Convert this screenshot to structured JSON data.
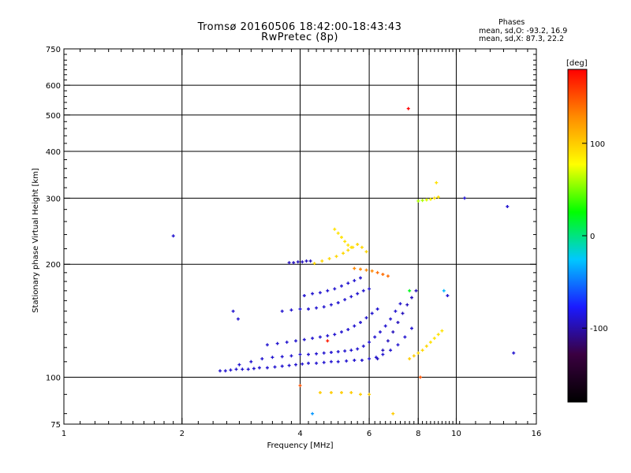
{
  "titles": {
    "line1": "Tromsø 20160506 18:42:00-18:43:43",
    "line2": "RwPretec (8p)"
  },
  "stats": {
    "heading": "Phases",
    "o_line": "mean, sd,O: -93.2, 16.9",
    "x_line": "mean, sd,X: 87.3, 22.2"
  },
  "colors": {
    "axis": "#000000",
    "grid": "#000000",
    "background": "#ffffff"
  },
  "chart_data": {
    "type": "scatter",
    "xlabel": "Frequency [MHz]",
    "ylabel": "Stationary phase Virtual Height [km]",
    "x_scale": "log",
    "y_scale": "log",
    "xlim": [
      1,
      16
    ],
    "ylim": [
      75,
      750
    ],
    "x_major_ticks": [
      1,
      2,
      4,
      6,
      8,
      10,
      16
    ],
    "y_major_ticks": [
      75,
      100,
      200,
      300,
      400,
      500,
      600,
      750
    ],
    "x_grid": [
      2,
      4,
      6,
      8,
      10
    ],
    "y_grid": [
      100,
      200,
      300,
      400,
      500,
      600
    ],
    "colorbar": {
      "label": "[deg]",
      "range": [
        -180,
        180
      ],
      "tick_values": [
        100,
        0,
        -100
      ],
      "tick_labels": [
        "100",
        "0",
        "-100"
      ],
      "stops": [
        "#000000",
        "#3a0040",
        "#1a1aff",
        "#00c8ff",
        "#00ff00",
        "#ffff00",
        "#ff8c00",
        "#ff0000"
      ]
    },
    "series": [
      {
        "trace": "O",
        "x": [
          2.5,
          2.58,
          2.66,
          2.75,
          2.85,
          2.95,
          3.05,
          3.15,
          3.3,
          3.45,
          3.6,
          3.75,
          3.9,
          4.05,
          4.2,
          4.4,
          4.6,
          4.8,
          5.0,
          5.25,
          5.5,
          5.75,
          6.0,
          6.25,
          6.5,
          6.8,
          7.1,
          7.4,
          7.7
        ],
        "y": [
          104,
          104,
          104.5,
          105,
          105,
          105,
          105.5,
          106,
          106,
          106.5,
          107,
          107.5,
          108,
          108.5,
          109,
          109,
          109.5,
          110,
          110,
          110.5,
          111,
          111,
          112,
          113,
          115,
          118,
          122,
          128,
          135
        ],
        "phase": [
          -90,
          -90,
          -90,
          -90,
          -90,
          -90,
          -90,
          -90,
          -90,
          -90,
          -90,
          -90,
          -90,
          -90,
          -90,
          -90,
          -90,
          -90,
          -90,
          -90,
          -90,
          -90,
          -90,
          -90,
          -90,
          -90,
          -90,
          -90,
          -90
        ]
      },
      {
        "trace": "O",
        "x": [
          2.8,
          3.0,
          3.2,
          3.4,
          3.6,
          3.8,
          4.0,
          4.2,
          4.4,
          4.6,
          4.8,
          5.0,
          5.2,
          5.4,
          5.6,
          5.8,
          6.0,
          6.2,
          6.4,
          6.6,
          6.8,
          7.0,
          7.2
        ],
        "y": [
          108,
          110,
          112,
          113,
          113.5,
          114,
          115,
          115,
          115.5,
          116,
          116.5,
          117,
          117.5,
          118,
          119,
          121,
          124,
          128,
          132,
          137,
          143,
          150,
          157
        ],
        "phase": [
          -90,
          -90,
          -90,
          -90,
          -90,
          -90,
          -90,
          -90,
          -90,
          -90,
          -90,
          -90,
          -90,
          -90,
          -90,
          -90,
          -90,
          -90,
          -90,
          -90,
          -90,
          -90,
          -90
        ]
      },
      {
        "trace": "O",
        "x": [
          3.3,
          3.5,
          3.7,
          3.9,
          4.1,
          4.3,
          4.5,
          4.7,
          4.9,
          5.1,
          5.3,
          5.5,
          5.7,
          5.9,
          6.1,
          6.3
        ],
        "y": [
          122,
          123,
          124,
          125,
          126,
          127,
          128,
          129,
          130,
          132,
          134,
          137,
          140,
          144,
          148,
          152
        ],
        "phase": [
          -90,
          -90,
          -90,
          -90,
          -90,
          -90,
          -90,
          -90,
          -90,
          -90,
          -90,
          -90,
          -90,
          -90,
          -90,
          -90
        ]
      },
      {
        "trace": "O",
        "x": [
          3.6,
          3.8,
          4.0,
          4.2,
          4.4,
          4.6,
          4.8,
          5.0,
          5.2,
          5.4,
          5.6,
          5.8,
          6.0
        ],
        "y": [
          150,
          151,
          152,
          152,
          153,
          154,
          156,
          158,
          161,
          164,
          167,
          170,
          172
        ],
        "phase": [
          -90,
          -90,
          -90,
          -90,
          -90,
          -90,
          -90,
          -90,
          -90,
          -90,
          -90,
          -90,
          -90
        ]
      },
      {
        "trace": "O",
        "x": [
          4.1,
          4.3,
          4.5,
          4.7,
          4.9,
          5.1,
          5.3,
          5.5,
          5.7
        ],
        "y": [
          165,
          167,
          168,
          170,
          172,
          175,
          178,
          181,
          184
        ],
        "phase": [
          -90,
          -90,
          -90,
          -90,
          -90,
          -90,
          -90,
          -90,
          -90
        ]
      },
      {
        "trace": "O",
        "x": [
          3.75,
          3.85,
          3.95,
          4.05,
          4.15,
          4.25
        ],
        "y": [
          202,
          202,
          203,
          203,
          204,
          204
        ],
        "phase": [
          -95,
          -95,
          -95,
          -95,
          -95,
          -95
        ]
      },
      {
        "trace": "O",
        "x": [
          6.3,
          6.5,
          6.7,
          6.9,
          7.1,
          7.3,
          7.5,
          7.7,
          7.9
        ],
        "y": [
          112,
          118,
          125,
          132,
          140,
          148,
          156,
          163,
          170
        ],
        "phase": [
          -95,
          -95,
          -95,
          -95,
          -95,
          -95,
          -95,
          -95,
          -95
        ]
      },
      {
        "trace": "X",
        "x": [
          4.35,
          4.55,
          4.75,
          4.95,
          5.15,
          5.3,
          5.45,
          5.6,
          5.75,
          5.9
        ],
        "y": [
          201,
          204,
          207,
          210,
          214,
          218,
          222,
          226,
          222,
          216
        ],
        "phase": [
          95,
          95,
          95,
          95,
          95,
          95,
          95,
          95,
          95,
          95
        ]
      },
      {
        "trace": "X",
        "x": [
          4.9,
          5.0,
          5.1,
          5.2,
          5.3,
          5.4
        ],
        "y": [
          248,
          242,
          236,
          230,
          225,
          222
        ],
        "phase": [
          90,
          90,
          90,
          90,
          90,
          90
        ]
      },
      {
        "trace": "X",
        "x": [
          5.5,
          5.7,
          5.9,
          6.1,
          6.3,
          6.5,
          6.7
        ],
        "y": [
          195,
          194,
          193,
          192,
          190,
          188,
          186
        ],
        "phase": [
          130,
          130,
          130,
          130,
          140,
          140,
          140
        ]
      },
      {
        "trace": "X",
        "x": [
          8.0,
          8.2,
          8.4,
          8.6,
          8.8,
          9.0
        ],
        "y": [
          295,
          296,
          297,
          298,
          300,
          302
        ],
        "phase": [
          60,
          60,
          70,
          80,
          90,
          90
        ]
      },
      {
        "trace": "X",
        "x": [
          7.6,
          7.8,
          8.0,
          8.2,
          8.4,
          8.6,
          8.8,
          9.0,
          9.2
        ],
        "y": [
          112,
          114,
          116,
          118,
          121,
          124,
          127,
          130,
          133
        ],
        "phase": [
          100,
          100,
          95,
          95,
          95,
          90,
          90,
          90,
          90
        ]
      },
      {
        "trace": "X",
        "x": [
          4.5,
          4.8,
          5.1,
          5.4,
          5.7,
          6.0
        ],
        "y": [
          91,
          91,
          91,
          91,
          90,
          90
        ],
        "phase": [
          100,
          100,
          100,
          100,
          100,
          100
        ]
      },
      {
        "trace": "scatter",
        "x": [
          1.9,
          2.7,
          2.78,
          7.55,
          10.5,
          13.5,
          14.0,
          9.5,
          8.9,
          4.3,
          4.0,
          8.1,
          6.9,
          7.6,
          9.3,
          4.7
        ],
        "y": [
          238,
          150,
          143,
          520,
          300,
          285,
          116,
          165,
          330,
          80,
          95,
          100,
          80,
          170,
          170,
          125
        ],
        "phase": [
          -90,
          -90,
          -90,
          180,
          -90,
          -90,
          -90,
          -90,
          90,
          -40,
          150,
          150,
          100,
          20,
          -30,
          170
        ]
      }
    ]
  }
}
